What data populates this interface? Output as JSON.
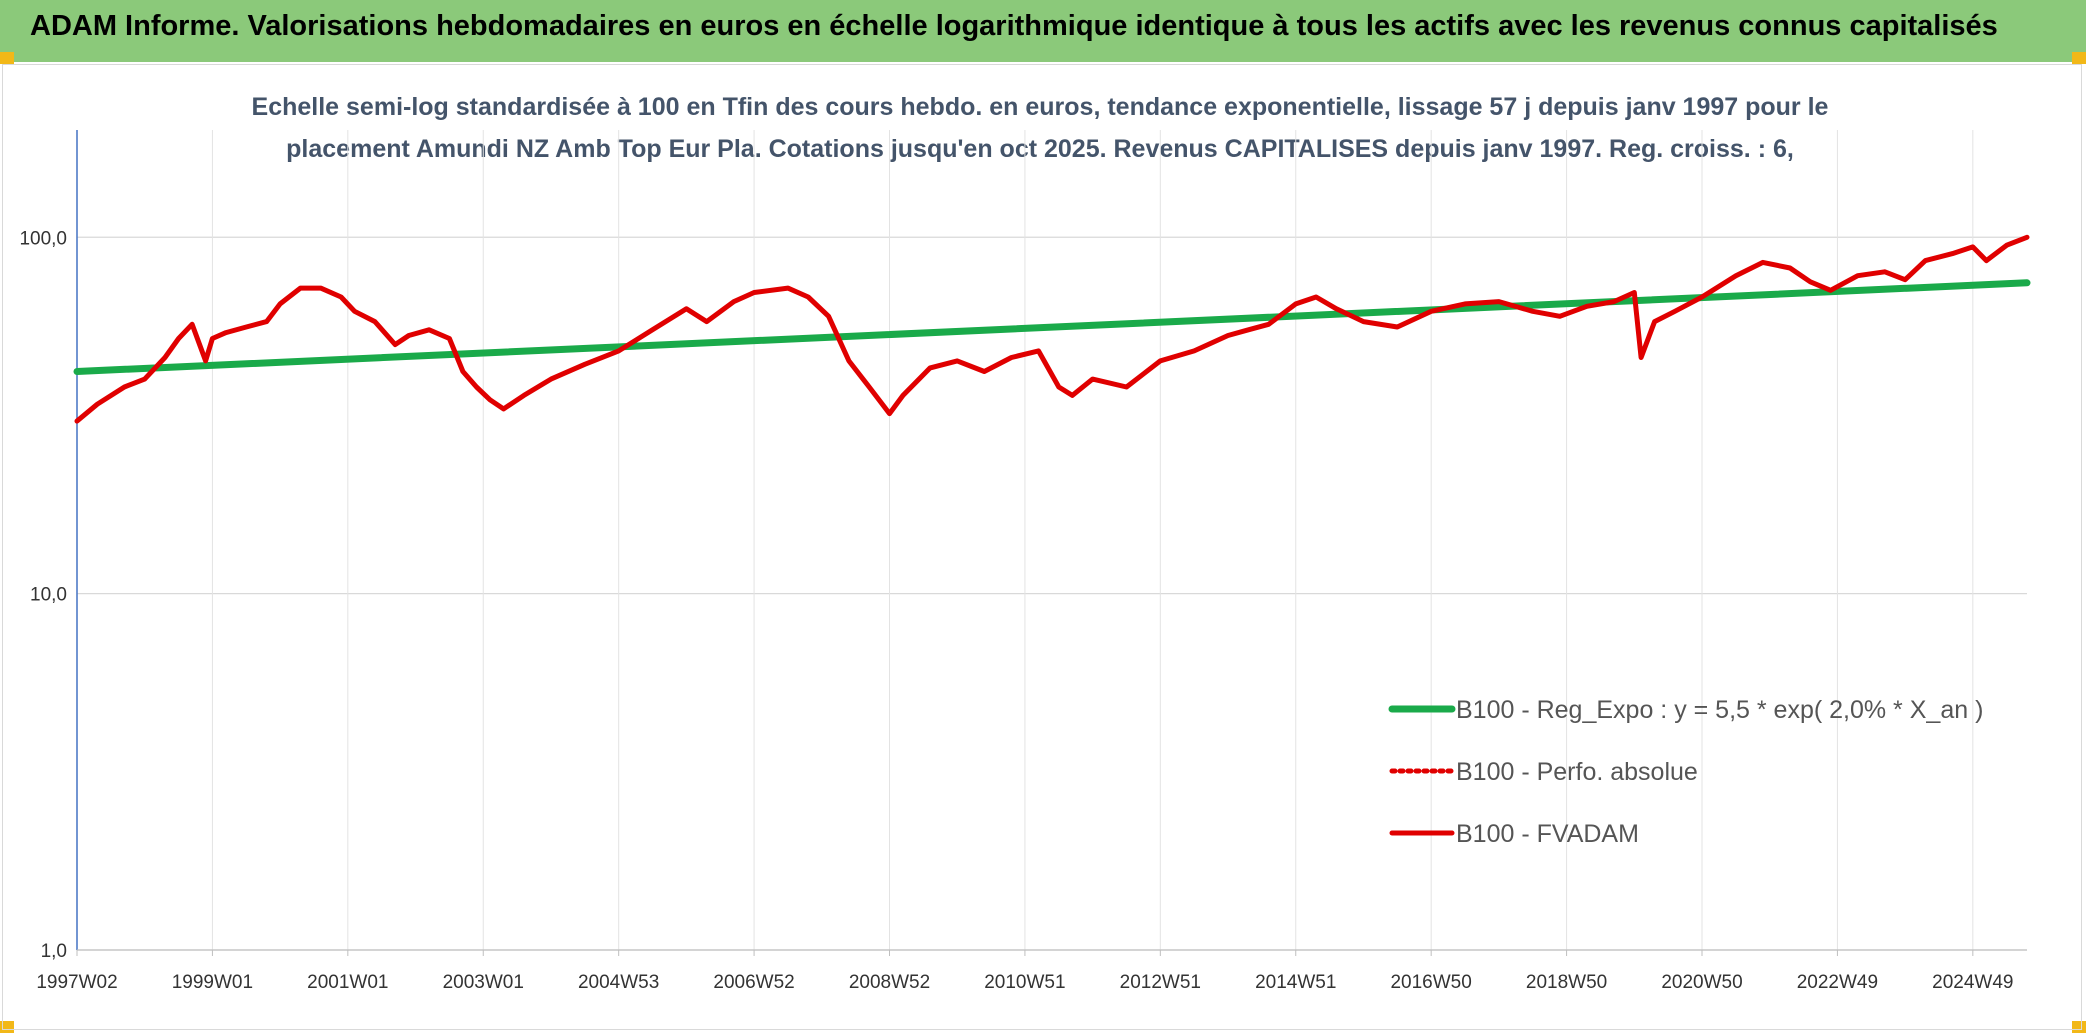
{
  "banner": {
    "title": "ADAM Informe. Valorisations hebdomadaires en euros en échelle logarithmique identique à tous les actifs avec les revenus connus capitalisés"
  },
  "chart_data": {
    "type": "line",
    "title": "Echelle semi-log standardisée à 100 en Tfin des cours hebdo. en euros, tendance exponentielle, lissage 57 j depuis janv 1997 pour le placement Amundi NZ Amb Top Eur Pla. Cotations jusqu'en oct 2025. Revenus CAPITALISES depuis janv 1997. Reg. croiss. : 6,",
    "title_lines": [
      "Echelle semi-log standardisée à 100 en Tfin des cours hebdo. en euros, tendance exponentielle, lissage 57 j depuis janv 1997 pour le",
      "placement Amundi NZ Amb Top Eur Pla. Cotations jusqu'en oct 2025. Revenus CAPITALISES depuis janv 1997. Reg. croiss. : 6,"
    ],
    "y_scale": "log",
    "ylim": [
      1,
      200
    ],
    "xlim": [
      1997.0,
      2025.8
    ],
    "grid": true,
    "legend_position": "bottom-right",
    "y_ticks": [
      {
        "value": 1,
        "label": "1,0"
      },
      {
        "value": 10,
        "label": "10,0"
      },
      {
        "value": 100,
        "label": "100,0"
      }
    ],
    "x_ticks": [
      {
        "value": 1997.0,
        "label": "1997W02"
      },
      {
        "value": 1999.0,
        "label": "1999W01"
      },
      {
        "value": 2001.0,
        "label": "2001W01"
      },
      {
        "value": 2003.0,
        "label": "2003W01"
      },
      {
        "value": 2005.0,
        "label": "2004W53"
      },
      {
        "value": 2007.0,
        "label": "2006W52"
      },
      {
        "value": 2009.0,
        "label": "2008W52"
      },
      {
        "value": 2011.0,
        "label": "2010W51"
      },
      {
        "value": 2013.0,
        "label": "2012W51"
      },
      {
        "value": 2015.0,
        "label": "2014W51"
      },
      {
        "value": 2017.0,
        "label": "2016W50"
      },
      {
        "value": 2019.0,
        "label": "2018W50"
      },
      {
        "value": 2021.0,
        "label": "2020W50"
      },
      {
        "value": 2023.0,
        "label": "2022W49"
      },
      {
        "value": 2025.0,
        "label": "2024W49"
      }
    ],
    "series": [
      {
        "name": "B100 - Reg_Expo : y = 5,5 * exp( 2,0% *  X_an )",
        "color": "#1aaa4a",
        "style": "solid",
        "x": [
          1997.0,
          2025.8
        ],
        "y": [
          42.0,
          74.5
        ]
      },
      {
        "name": "B100 - Perfo. absolue",
        "color": "#e00000",
        "style": "dotted",
        "x": [],
        "y": []
      },
      {
        "name": "B100 - FVADAM",
        "color": "#e00000",
        "style": "solid",
        "x": [
          1997.0,
          1997.3,
          1997.7,
          1998.0,
          1998.3,
          1998.5,
          1998.7,
          1998.9,
          1999.0,
          1999.2,
          1999.5,
          1999.8,
          2000.0,
          2000.3,
          2000.6,
          2000.9,
          2001.1,
          2001.4,
          2001.7,
          2001.9,
          2002.2,
          2002.5,
          2002.7,
          2002.9,
          2003.1,
          2003.3,
          2003.6,
          2004.0,
          2004.5,
          2005.0,
          2005.5,
          2006.0,
          2006.3,
          2006.7,
          2007.0,
          2007.5,
          2007.8,
          2008.1,
          2008.4,
          2008.7,
          2009.0,
          2009.2,
          2009.6,
          2010.0,
          2010.4,
          2010.8,
          2011.2,
          2011.5,
          2011.7,
          2012.0,
          2012.5,
          2013.0,
          2013.5,
          2014.0,
          2014.3,
          2014.6,
          2015.0,
          2015.3,
          2015.6,
          2016.0,
          2016.5,
          2017.0,
          2017.5,
          2018.0,
          2018.5,
          2018.9,
          2019.3,
          2019.7,
          2020.0,
          2020.1,
          2020.3,
          2020.6,
          2021.0,
          2021.5,
          2021.9,
          2022.3,
          2022.6,
          2022.9,
          2023.3,
          2023.7,
          2024.0,
          2024.3,
          2024.7,
          2025.0,
          2025.2,
          2025.5,
          2025.8
        ],
        "y": [
          30.5,
          34.0,
          38.0,
          40.0,
          46.0,
          52.0,
          57.0,
          45.0,
          52.0,
          54.0,
          56.0,
          58.0,
          65.0,
          72.0,
          72.0,
          68.0,
          62.0,
          58.0,
          50.0,
          53.0,
          55.0,
          52.0,
          42.0,
          38.0,
          35.0,
          33.0,
          36.0,
          40.0,
          44.0,
          48.0,
          55.0,
          63.0,
          58.0,
          66.0,
          70.0,
          72.0,
          68.0,
          60.0,
          45.0,
          38.0,
          32.0,
          36.0,
          43.0,
          45.0,
          42.0,
          46.0,
          48.0,
          38.0,
          36.0,
          40.0,
          38.0,
          45.0,
          48.0,
          53.0,
          55.0,
          57.0,
          65.0,
          68.0,
          63.0,
          58.0,
          56.0,
          62.0,
          65.0,
          66.0,
          62.0,
          60.0,
          64.0,
          66.0,
          70.0,
          46.0,
          58.0,
          62.0,
          68.0,
          78.0,
          85.0,
          82.0,
          75.0,
          71.0,
          78.0,
          80.0,
          76.0,
          86.0,
          90.0,
          94.0,
          86.0,
          95.0,
          100.0
        ]
      }
    ]
  }
}
